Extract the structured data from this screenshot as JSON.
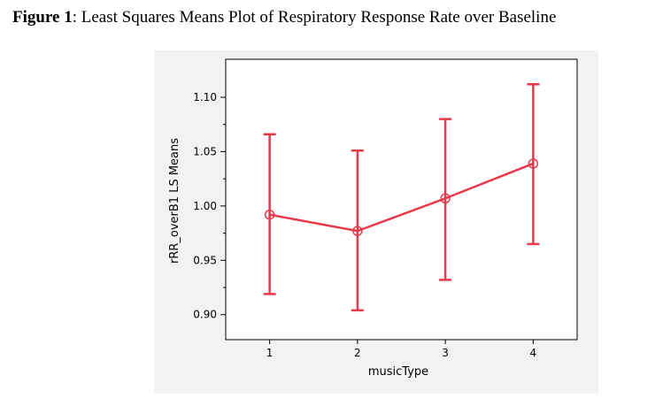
{
  "figure": {
    "label": "Figure 1",
    "separator": ": ",
    "text": "Least Squares Means Plot of Respiratory Response Rate over Baseline"
  },
  "chart_data": {
    "type": "line",
    "xlabel": "musicType",
    "ylabel": "rRR_overB1 LS Means",
    "categories": [
      "1",
      "2",
      "3",
      "4"
    ],
    "series": [
      {
        "means": [
          0.992,
          0.977,
          1.007,
          1.039
        ],
        "lower": [
          0.919,
          0.904,
          0.932,
          0.965
        ],
        "upper": [
          1.066,
          1.051,
          1.08,
          1.112
        ]
      }
    ],
    "yticks": [
      0.9,
      0.95,
      1.0,
      1.05,
      1.1
    ],
    "ytick_labels": [
      "0.90",
      "0.95",
      "1.00",
      "1.05",
      "1.10"
    ],
    "ylim": [
      0.877,
      1.135
    ],
    "color": "#e8394a",
    "grid": false
  }
}
